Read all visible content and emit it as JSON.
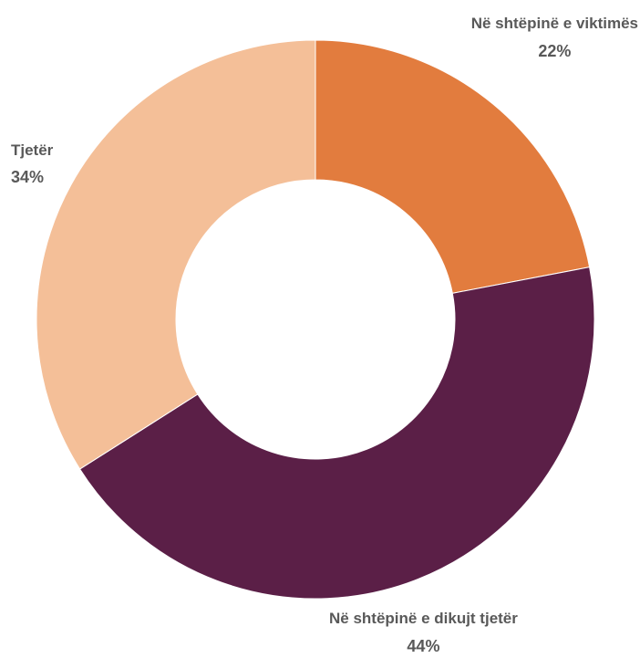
{
  "chart_data": {
    "type": "pie",
    "title": "",
    "categories": [
      "Në shtëpinë e viktimës",
      "Në shtëpinë e dikujt tjetër",
      "Tjetër"
    ],
    "values": [
      22,
      44,
      34
    ],
    "value_labels": [
      "22%",
      "44%",
      "34%"
    ],
    "colors": [
      "#E27C3E",
      "#5B1F47",
      "#F4BF98"
    ],
    "donut": true,
    "legend": "none"
  }
}
